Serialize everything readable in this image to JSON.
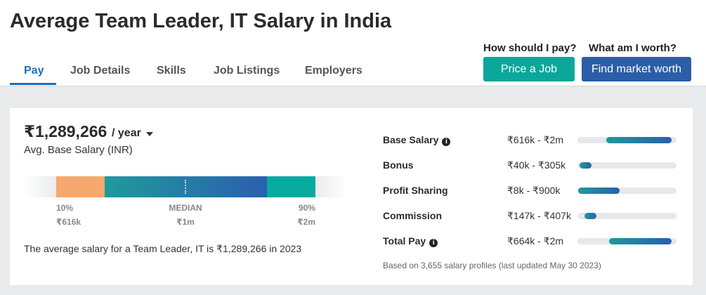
{
  "header": {
    "title": "Average Team Leader, IT Salary in India"
  },
  "tabs": [
    "Pay",
    "Job Details",
    "Skills",
    "Job Listings",
    "Employers"
  ],
  "actions": [
    {
      "prompt": "How should I pay?",
      "button": "Price a Job"
    },
    {
      "prompt": "What am I worth?",
      "button": "Find market worth"
    }
  ],
  "summary": {
    "salary": "₹1,289,266",
    "period": "/ year",
    "caption": "Avg. Base Salary (INR)",
    "percentiles": [
      {
        "label": "10%",
        "value": "₹616k"
      },
      {
        "label": "MEDIAN",
        "value": "₹1m"
      },
      {
        "label": "90%",
        "value": "₹2m"
      }
    ],
    "sentence": "The average salary for a Team Leader, IT is ₹1,289,266 in 2023"
  },
  "pay_ranges": {
    "xlim": [
      0,
      2100000
    ],
    "rows": [
      {
        "name": "Base Salary",
        "range": "₹616k - ₹2m",
        "low": 616000,
        "high": 2000000,
        "info": true
      },
      {
        "name": "Bonus",
        "range": "₹40k - ₹305k",
        "low": 40000,
        "high": 305000,
        "info": false
      },
      {
        "name": "Profit Sharing",
        "range": "₹8k - ₹900k",
        "low": 8000,
        "high": 900000,
        "info": false
      },
      {
        "name": "Commission",
        "range": "₹147k - ₹407k",
        "low": 147000,
        "high": 407000,
        "info": false
      },
      {
        "name": "Total Pay",
        "range": "₹664k - ₹2m",
        "low": 664000,
        "high": 2000000,
        "info": true
      }
    ],
    "footnote": "Based on 3,655 salary profiles (last updated May 30 2023)"
  }
}
